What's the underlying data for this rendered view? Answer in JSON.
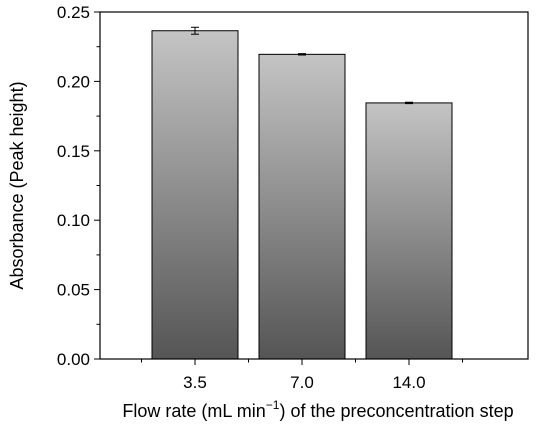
{
  "chart_data": {
    "type": "bar",
    "categories": [
      "3.5",
      "7.0",
      "14.0"
    ],
    "values": [
      0.2365,
      0.2195,
      0.1845
    ],
    "errors": [
      0.0025,
      0.0005,
      0.0005
    ],
    "xlabel_main": "Flow rate (mL min",
    "xlabel_sup": "−1",
    "xlabel_rest": ") of the preconcentration step",
    "ylabel": "Absorbance (Peak height)",
    "ylim": [
      0,
      0.25
    ],
    "yticks": [
      "0.00",
      "0.05",
      "0.10",
      "0.15",
      "0.20",
      "0.25"
    ],
    "grid": false,
    "bar_gradient": [
      "#c4c4c4",
      "#555555"
    ]
  }
}
